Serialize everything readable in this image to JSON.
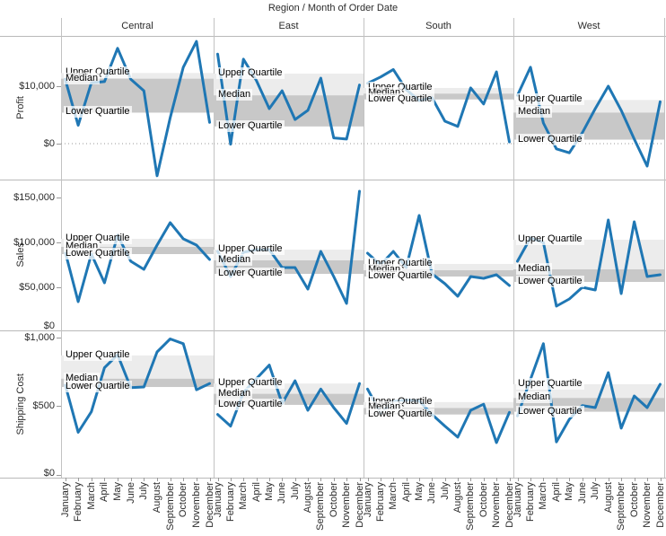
{
  "colors": {
    "line": "#1f77b4",
    "band_light": "#ececec",
    "band_dark": "#c8c8c8",
    "border": "#b9b9b9",
    "zero_line": "#999999",
    "text": "#2b2b2b"
  },
  "chart_data": {
    "type": "line",
    "title": "Region  /  Month of Order Date",
    "legend_position": "none",
    "grid": "off",
    "facet_columns": [
      "Central",
      "East",
      "South",
      "West"
    ],
    "facet_rows": [
      {
        "measure": "Profit",
        "axis_range": [
          -6250,
          18750
        ],
        "ticks": [
          {
            "v": 10000,
            "label": "$10,000"
          },
          {
            "v": 0,
            "label": "$0"
          }
        ],
        "zero_dotted": true
      },
      {
        "measure": "Sales",
        "axis_range": [
          2000,
          170000
        ],
        "ticks": [
          {
            "v": 150000,
            "label": "$150,000"
          },
          {
            "v": 100000,
            "label": "$100,000"
          },
          {
            "v": 50000,
            "label": "$50,000"
          },
          {
            "v": 0,
            "label": "$0"
          }
        ],
        "zero_dotted": false
      },
      {
        "measure": "Shipping Cost",
        "axis_range": [
          -20,
          1052
        ],
        "ticks": [
          {
            "v": 1000,
            "label": "$1,000"
          },
          {
            "v": 500,
            "label": "$500"
          },
          {
            "v": 0,
            "label": "$0"
          }
        ],
        "zero_dotted": false
      }
    ],
    "categories": [
      "January",
      "February",
      "March",
      "April",
      "May",
      "June",
      "July",
      "August",
      "September",
      "October",
      "November",
      "December"
    ],
    "band_labels": {
      "upper": "Upper Quartile",
      "median": "Median",
      "lower": "Lower Quartile"
    },
    "cells": [
      {
        "measure": "Profit",
        "region": "Central",
        "values": [
          11300,
          3200,
          10600,
          10800,
          16600,
          11200,
          9200,
          -5600,
          4500,
          13300,
          17800,
          3700
        ],
        "quartiles": {
          "upper": 12300,
          "median": 11300,
          "lower": 5400
        }
      },
      {
        "measure": "Profit",
        "region": "East",
        "values": [
          15600,
          -100,
          14700,
          11000,
          6100,
          9200,
          4200,
          5800,
          11400,
          1000,
          800,
          10200
        ],
        "quartiles": {
          "upper": 12200,
          "median": 8400,
          "lower": 3000
        }
      },
      {
        "measure": "Profit",
        "region": "South",
        "values": [
          10500,
          11600,
          12900,
          9400,
          7500,
          8000,
          3900,
          3000,
          9700,
          6900,
          12500,
          300
        ],
        "quartiles": {
          "upper": 9700,
          "median": 8700,
          "lower": 7700
        }
      },
      {
        "measure": "Profit",
        "region": "West",
        "values": [
          8400,
          13300,
          3600,
          -900,
          -1600,
          1900,
          6100,
          10000,
          5800,
          800,
          -3900,
          7300
        ],
        "quartiles": {
          "upper": 7600,
          "median": 5400,
          "lower": 700
        }
      },
      {
        "measure": "Sales",
        "region": "Central",
        "values": [
          90000,
          34000,
          87000,
          55000,
          108000,
          79000,
          70000,
          97000,
          122000,
          104000,
          97000,
          81000
        ],
        "quartiles": {
          "upper": 104000,
          "median": 95000,
          "lower": 87000
        }
      },
      {
        "measure": "Sales",
        "region": "East",
        "values": [
          90000,
          62000,
          89000,
          92000,
          92000,
          72000,
          72000,
          48000,
          90000,
          62000,
          32000,
          157000
        ],
        "quartiles": {
          "upper": 92000,
          "median": 80000,
          "lower": 65000
        }
      },
      {
        "measure": "Sales",
        "region": "South",
        "values": [
          88000,
          75000,
          90000,
          72000,
          130000,
          65000,
          54000,
          40000,
          62000,
          60000,
          64000,
          52000
        ],
        "quartiles": {
          "upper": 76000,
          "median": 69000,
          "lower": 62000
        }
      },
      {
        "measure": "Sales",
        "region": "West",
        "values": [
          79000,
          105000,
          100000,
          29000,
          37000,
          50000,
          47000,
          125000,
          43000,
          123000,
          62000,
          64000
        ],
        "quartiles": {
          "upper": 103000,
          "median": 70000,
          "lower": 56000
        }
      },
      {
        "measure": "Shipping Cost",
        "region": "Central",
        "values": [
          660,
          310,
          460,
          780,
          875,
          635,
          640,
          895,
          990,
          955,
          620,
          665
        ],
        "quartiles": {
          "upper": 870,
          "median": 700,
          "lower": 640
        }
      },
      {
        "measure": "Shipping Cost",
        "region": "East",
        "values": [
          440,
          355,
          600,
          700,
          800,
          520,
          685,
          470,
          625,
          490,
          375,
          665
        ],
        "quartiles": {
          "upper": 665,
          "median": 590,
          "lower": 510
        }
      },
      {
        "measure": "Shipping Cost",
        "region": "South",
        "values": [
          625,
          450,
          535,
          545,
          540,
          440,
          355,
          275,
          470,
          515,
          235,
          455
        ],
        "quartiles": {
          "upper": 530,
          "median": 487,
          "lower": 440
        }
      },
      {
        "measure": "Shipping Cost",
        "region": "West",
        "values": [
          430,
          695,
          955,
          240,
          405,
          505,
          490,
          745,
          340,
          575,
          490,
          660
        ],
        "quartiles": {
          "upper": 660,
          "median": 560,
          "lower": 460
        }
      }
    ]
  }
}
